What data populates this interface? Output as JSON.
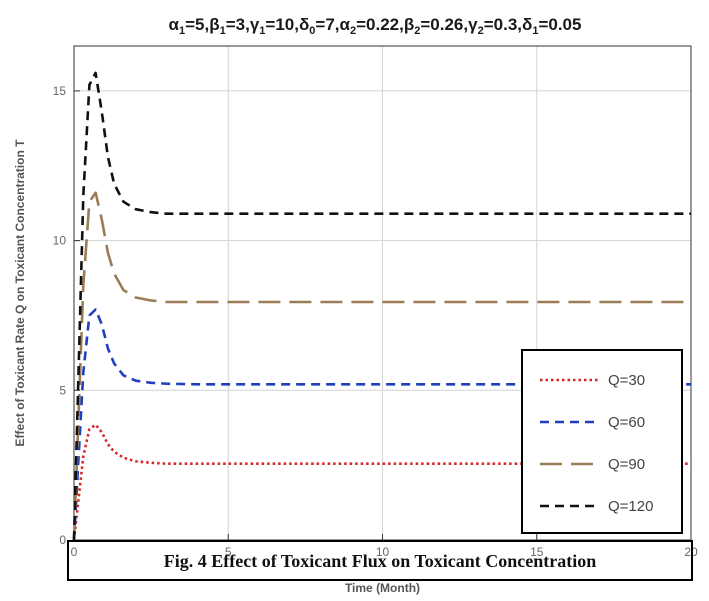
{
  "chart_data": {
    "type": "line",
    "title": "",
    "title_parts": [
      {
        "base": "α",
        "sub": "1",
        "val": "=5,"
      },
      {
        "base": "β",
        "sub": "1",
        "val": "=3,"
      },
      {
        "base": "γ",
        "sub": "1",
        "val": "=10,"
      },
      {
        "base": "δ",
        "sub": "0",
        "val": "=7,"
      },
      {
        "base": "α",
        "sub": "2",
        "val": "=0.22,"
      },
      {
        "base": "β",
        "sub": "2",
        "val": "=0.26,"
      },
      {
        "base": "γ",
        "sub": "2",
        "val": "=0.3,"
      },
      {
        "base": "δ",
        "sub": "1",
        "val": "=0.05"
      }
    ],
    "xlabel": "Time (Month)",
    "ylabel": "Effect of Toxicant Rate Q on Toxicant Concentration T",
    "xlim": [
      0,
      20
    ],
    "ylim": [
      0,
      16.5
    ],
    "xticks": [
      0,
      5,
      10,
      15,
      20
    ],
    "yticks": [
      0,
      5,
      10,
      15
    ],
    "grid": true,
    "legend_position": "lower-right",
    "caption": "Fig. 4   Effect of Toxicant Flux on Toxicant Concentration",
    "series": [
      {
        "name": "Q=30",
        "color": "#d62728",
        "dash": "dotted",
        "x": [
          0,
          0.3,
          0.5,
          0.7,
          0.9,
          1.1,
          1.3,
          1.6,
          2.0,
          2.5,
          3,
          4,
          6,
          10,
          15,
          20
        ],
        "y": [
          0,
          2.8,
          3.7,
          3.85,
          3.6,
          3.2,
          2.95,
          2.75,
          2.63,
          2.58,
          2.55,
          2.55,
          2.55,
          2.55,
          2.55,
          2.55
        ]
      },
      {
        "name": "Q=60",
        "color": "#1f3fbf",
        "dash": "dashed",
        "x": [
          0,
          0.3,
          0.5,
          0.7,
          0.9,
          1.1,
          1.3,
          1.6,
          2.0,
          2.5,
          3,
          4,
          6,
          10,
          15,
          20
        ],
        "y": [
          0,
          5.6,
          7.5,
          7.7,
          7.2,
          6.4,
          5.9,
          5.5,
          5.32,
          5.25,
          5.22,
          5.2,
          5.2,
          5.2,
          5.2,
          5.2
        ]
      },
      {
        "name": "Q=90",
        "color": "#9c7c55",
        "dash": "longdash",
        "x": [
          0,
          0.3,
          0.5,
          0.7,
          0.9,
          1.1,
          1.3,
          1.6,
          2.0,
          2.5,
          3,
          4,
          6,
          10,
          15,
          20
        ],
        "y": [
          0,
          8.5,
          11.3,
          11.6,
          10.7,
          9.6,
          8.9,
          8.35,
          8.1,
          8.0,
          7.95,
          7.95,
          7.95,
          7.95,
          7.95,
          7.95
        ]
      },
      {
        "name": "Q=120",
        "color": "#111111",
        "dash": "dashed",
        "x": [
          0,
          0.3,
          0.5,
          0.7,
          0.9,
          1.1,
          1.3,
          1.6,
          2.0,
          2.5,
          3,
          4,
          6,
          10,
          15,
          20
        ],
        "y": [
          0,
          11.5,
          15.2,
          15.6,
          14.3,
          12.8,
          11.9,
          11.3,
          11.05,
          10.95,
          10.9,
          10.9,
          10.9,
          10.9,
          10.9,
          10.9
        ]
      }
    ]
  }
}
